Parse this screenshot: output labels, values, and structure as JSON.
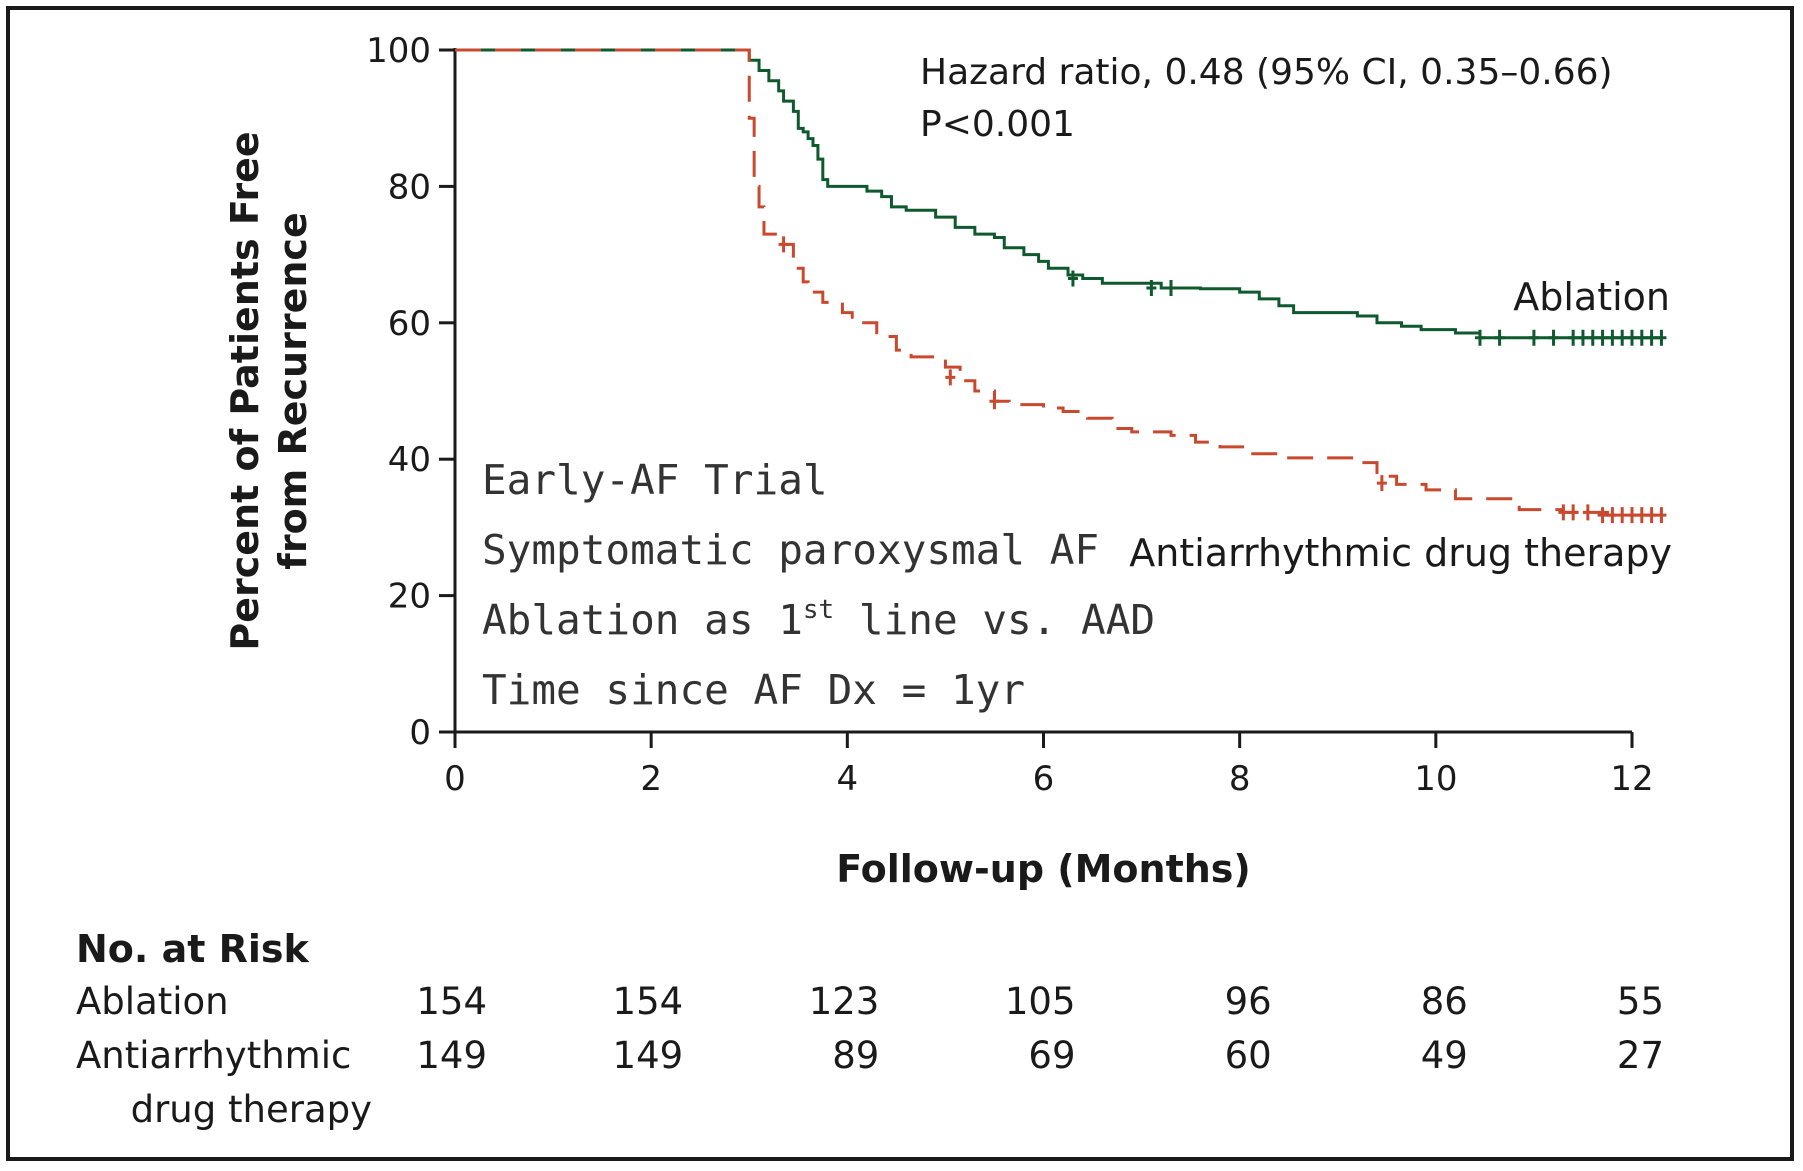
{
  "chart_data": {
    "type": "line",
    "ylabel_lines": [
      "Percent of Patients Free",
      "from Recurrence"
    ],
    "xlabel": "Follow-up (Months)",
    "xlim": [
      0,
      12
    ],
    "ylim": [
      0,
      100
    ],
    "x_ticks": [
      "0",
      "2",
      "4",
      "6",
      "8",
      "10",
      "12"
    ],
    "y_ticks": [
      "0",
      "20",
      "40",
      "60",
      "80",
      "100"
    ],
    "grid": false,
    "hazard_ratio": "Hazard ratio, 0.48 (95% CI, 0.35–0.66)",
    "p_value": "P<0.001",
    "notes": [
      {
        "before": "Early-AF Trial",
        "sup": "",
        "after": ""
      },
      {
        "before": "Symptomatic paroxysmal AF",
        "sup": "",
        "after": ""
      },
      {
        "before": "Ablation as 1",
        "sup": "st",
        "after": " line vs. AAD"
      },
      {
        "before": "Time since AF Dx = 1yr",
        "sup": "",
        "after": ""
      }
    ],
    "series": [
      {
        "name": "Ablation",
        "color": "#0e5a2e",
        "dashed": false,
        "steps": [
          [
            0,
            100
          ],
          [
            3.0,
            100
          ],
          [
            3.0,
            98.5
          ],
          [
            3.1,
            97
          ],
          [
            3.2,
            95.5
          ],
          [
            3.3,
            94
          ],
          [
            3.35,
            92.5
          ],
          [
            3.45,
            91
          ],
          [
            3.5,
            88.5
          ],
          [
            3.55,
            88
          ],
          [
            3.6,
            87
          ],
          [
            3.65,
            86
          ],
          [
            3.7,
            84
          ],
          [
            3.75,
            81
          ],
          [
            3.8,
            80
          ],
          [
            3.9,
            80
          ],
          [
            4.2,
            79.3
          ],
          [
            4.35,
            78.5
          ],
          [
            4.45,
            77
          ],
          [
            4.6,
            76.5
          ],
          [
            4.9,
            75.5
          ],
          [
            5.1,
            74
          ],
          [
            5.3,
            73
          ],
          [
            5.5,
            72.5
          ],
          [
            5.6,
            71
          ],
          [
            5.8,
            70
          ],
          [
            5.95,
            69
          ],
          [
            6.05,
            68
          ],
          [
            6.25,
            67
          ],
          [
            6.4,
            66.5
          ],
          [
            6.6,
            65.8
          ],
          [
            7.2,
            65.1
          ],
          [
            7.6,
            65
          ],
          [
            8.0,
            64.5
          ],
          [
            8.2,
            63.5
          ],
          [
            8.4,
            62.5
          ],
          [
            8.55,
            61.5
          ],
          [
            9.2,
            61
          ],
          [
            9.4,
            60
          ],
          [
            9.65,
            59.5
          ],
          [
            9.85,
            59
          ],
          [
            10.2,
            58.5
          ],
          [
            10.45,
            57.8
          ],
          [
            12.3,
            57.8
          ]
        ],
        "censor": [
          [
            6.3,
            66.5
          ],
          [
            7.1,
            65.1
          ],
          [
            7.3,
            65.1
          ],
          [
            10.45,
            57.8
          ],
          [
            10.65,
            57.8
          ],
          [
            11.0,
            57.8
          ],
          [
            11.2,
            57.8
          ],
          [
            11.4,
            57.8
          ],
          [
            11.5,
            57.8
          ],
          [
            11.6,
            57.8
          ],
          [
            11.7,
            57.8
          ],
          [
            11.8,
            57.8
          ],
          [
            11.9,
            57.8
          ],
          [
            12.0,
            57.8
          ],
          [
            12.1,
            57.8
          ],
          [
            12.2,
            57.8
          ],
          [
            12.3,
            57.8
          ]
        ]
      },
      {
        "name": "Antiarrhythmic drug therapy",
        "color": "#c9492f",
        "dashed": true,
        "steps": [
          [
            0,
            100
          ],
          [
            3.0,
            100
          ],
          [
            3.0,
            90
          ],
          [
            3.05,
            80
          ],
          [
            3.1,
            77
          ],
          [
            3.15,
            73
          ],
          [
            3.3,
            71.5
          ],
          [
            3.45,
            68
          ],
          [
            3.55,
            66
          ],
          [
            3.6,
            64.5
          ],
          [
            3.75,
            63
          ],
          [
            3.95,
            61.5
          ],
          [
            4.05,
            60
          ],
          [
            4.3,
            58
          ],
          [
            4.5,
            56
          ],
          [
            4.65,
            55
          ],
          [
            5.0,
            53.5
          ],
          [
            5.15,
            51.5
          ],
          [
            5.3,
            50
          ],
          [
            5.5,
            48.5
          ],
          [
            5.65,
            48
          ],
          [
            6.0,
            47.5
          ],
          [
            6.2,
            47
          ],
          [
            6.45,
            46
          ],
          [
            6.7,
            44.5
          ],
          [
            6.9,
            44
          ],
          [
            7.3,
            43.5
          ],
          [
            7.55,
            42.5
          ],
          [
            7.8,
            41.8
          ],
          [
            8.1,
            40.8
          ],
          [
            8.4,
            40.2
          ],
          [
            9.2,
            39.5
          ],
          [
            9.4,
            37.5
          ],
          [
            9.6,
            36.3
          ],
          [
            9.9,
            35.5
          ],
          [
            10.2,
            34.2
          ],
          [
            10.85,
            32.6
          ],
          [
            11.3,
            32.2
          ],
          [
            11.75,
            31.8
          ],
          [
            12.3,
            31.8
          ]
        ],
        "censor": [
          [
            3.35,
            71.5
          ],
          [
            5.05,
            52
          ],
          [
            5.5,
            48.5
          ],
          [
            9.45,
            36.5
          ],
          [
            11.3,
            32.2
          ],
          [
            11.4,
            32.2
          ],
          [
            11.55,
            32.2
          ],
          [
            11.7,
            31.8
          ],
          [
            11.8,
            31.8
          ],
          [
            11.9,
            31.8
          ],
          [
            12.0,
            31.8
          ],
          [
            12.1,
            31.8
          ],
          [
            12.2,
            31.8
          ],
          [
            12.3,
            31.8
          ]
        ]
      }
    ],
    "risk_table": {
      "title": "No. at Risk",
      "rows": [
        {
          "label_lines": [
            "Ablation"
          ],
          "values": [
            "154",
            "154",
            "123",
            "105",
            "96",
            "86",
            "55"
          ]
        },
        {
          "label_lines": [
            "Antiarrhythmic",
            "drug therapy"
          ],
          "values": [
            "149",
            "149",
            "89",
            "69",
            "60",
            "49",
            "27"
          ]
        }
      ]
    }
  }
}
